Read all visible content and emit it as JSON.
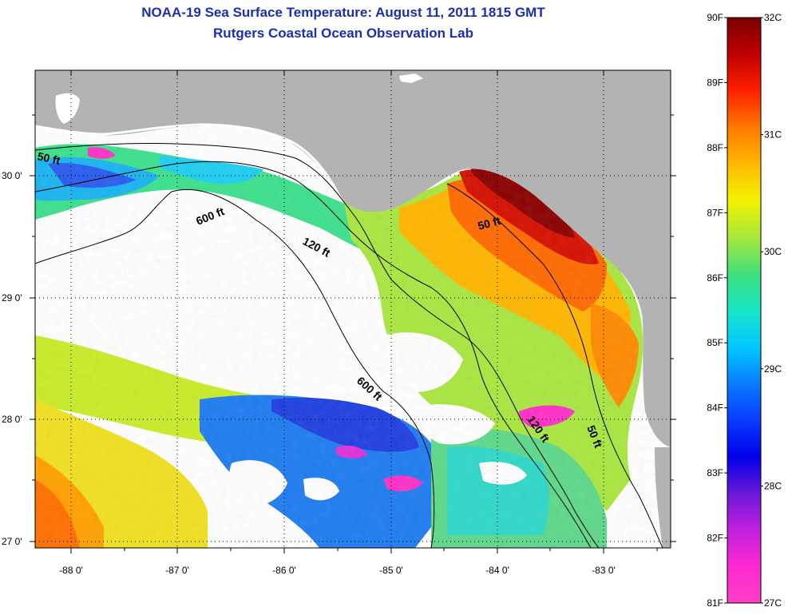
{
  "title_line1": "NOAA-19 Sea Surface Temperature:  August 11, 2011 1815 GMT",
  "title_line2": "Rutgers Coastal Ocean Observation Lab",
  "map": {
    "lon_ticks": [
      "-88 0'",
      "-87 0'",
      "-86 0'",
      "-85 0'",
      "-84 0'",
      "-83 0'"
    ],
    "lat_ticks": [
      "30 0'",
      "29 0'",
      "28 0'",
      "27 0'"
    ],
    "lon_range": [
      -88.33,
      -82.35
    ],
    "lat_range": [
      26.93,
      30.83
    ],
    "land_color": "#b3b3b3",
    "cloud_color": "#ffffff",
    "depth_labels": [
      "50 ft",
      "600 ft",
      "120 ft",
      "50 ft",
      "600 ft",
      "120 ft",
      "50 ft"
    ]
  },
  "colorbar": {
    "fahrenheit_labels": [
      "90F",
      "89F",
      "88F",
      "87F",
      "86F",
      "85F",
      "84F",
      "83F",
      "82F",
      "81F"
    ],
    "celsius_labels": [
      "32C",
      "31C",
      "30C",
      "29C",
      "28C",
      "27C"
    ],
    "fahrenheit_range": [
      81,
      90
    ],
    "celsius_range": [
      27,
      32
    ],
    "gradient_colors": [
      "#7a0000",
      "#c00000",
      "#ff2000",
      "#ff7a00",
      "#ffb800",
      "#f2f200",
      "#a8e83a",
      "#3fe07a",
      "#19e6c8",
      "#00c8ff",
      "#0a7cff",
      "#0a3cff",
      "#0000e8",
      "#6a18d8",
      "#c020e0",
      "#ff28d0",
      "#ff40c8"
    ]
  }
}
